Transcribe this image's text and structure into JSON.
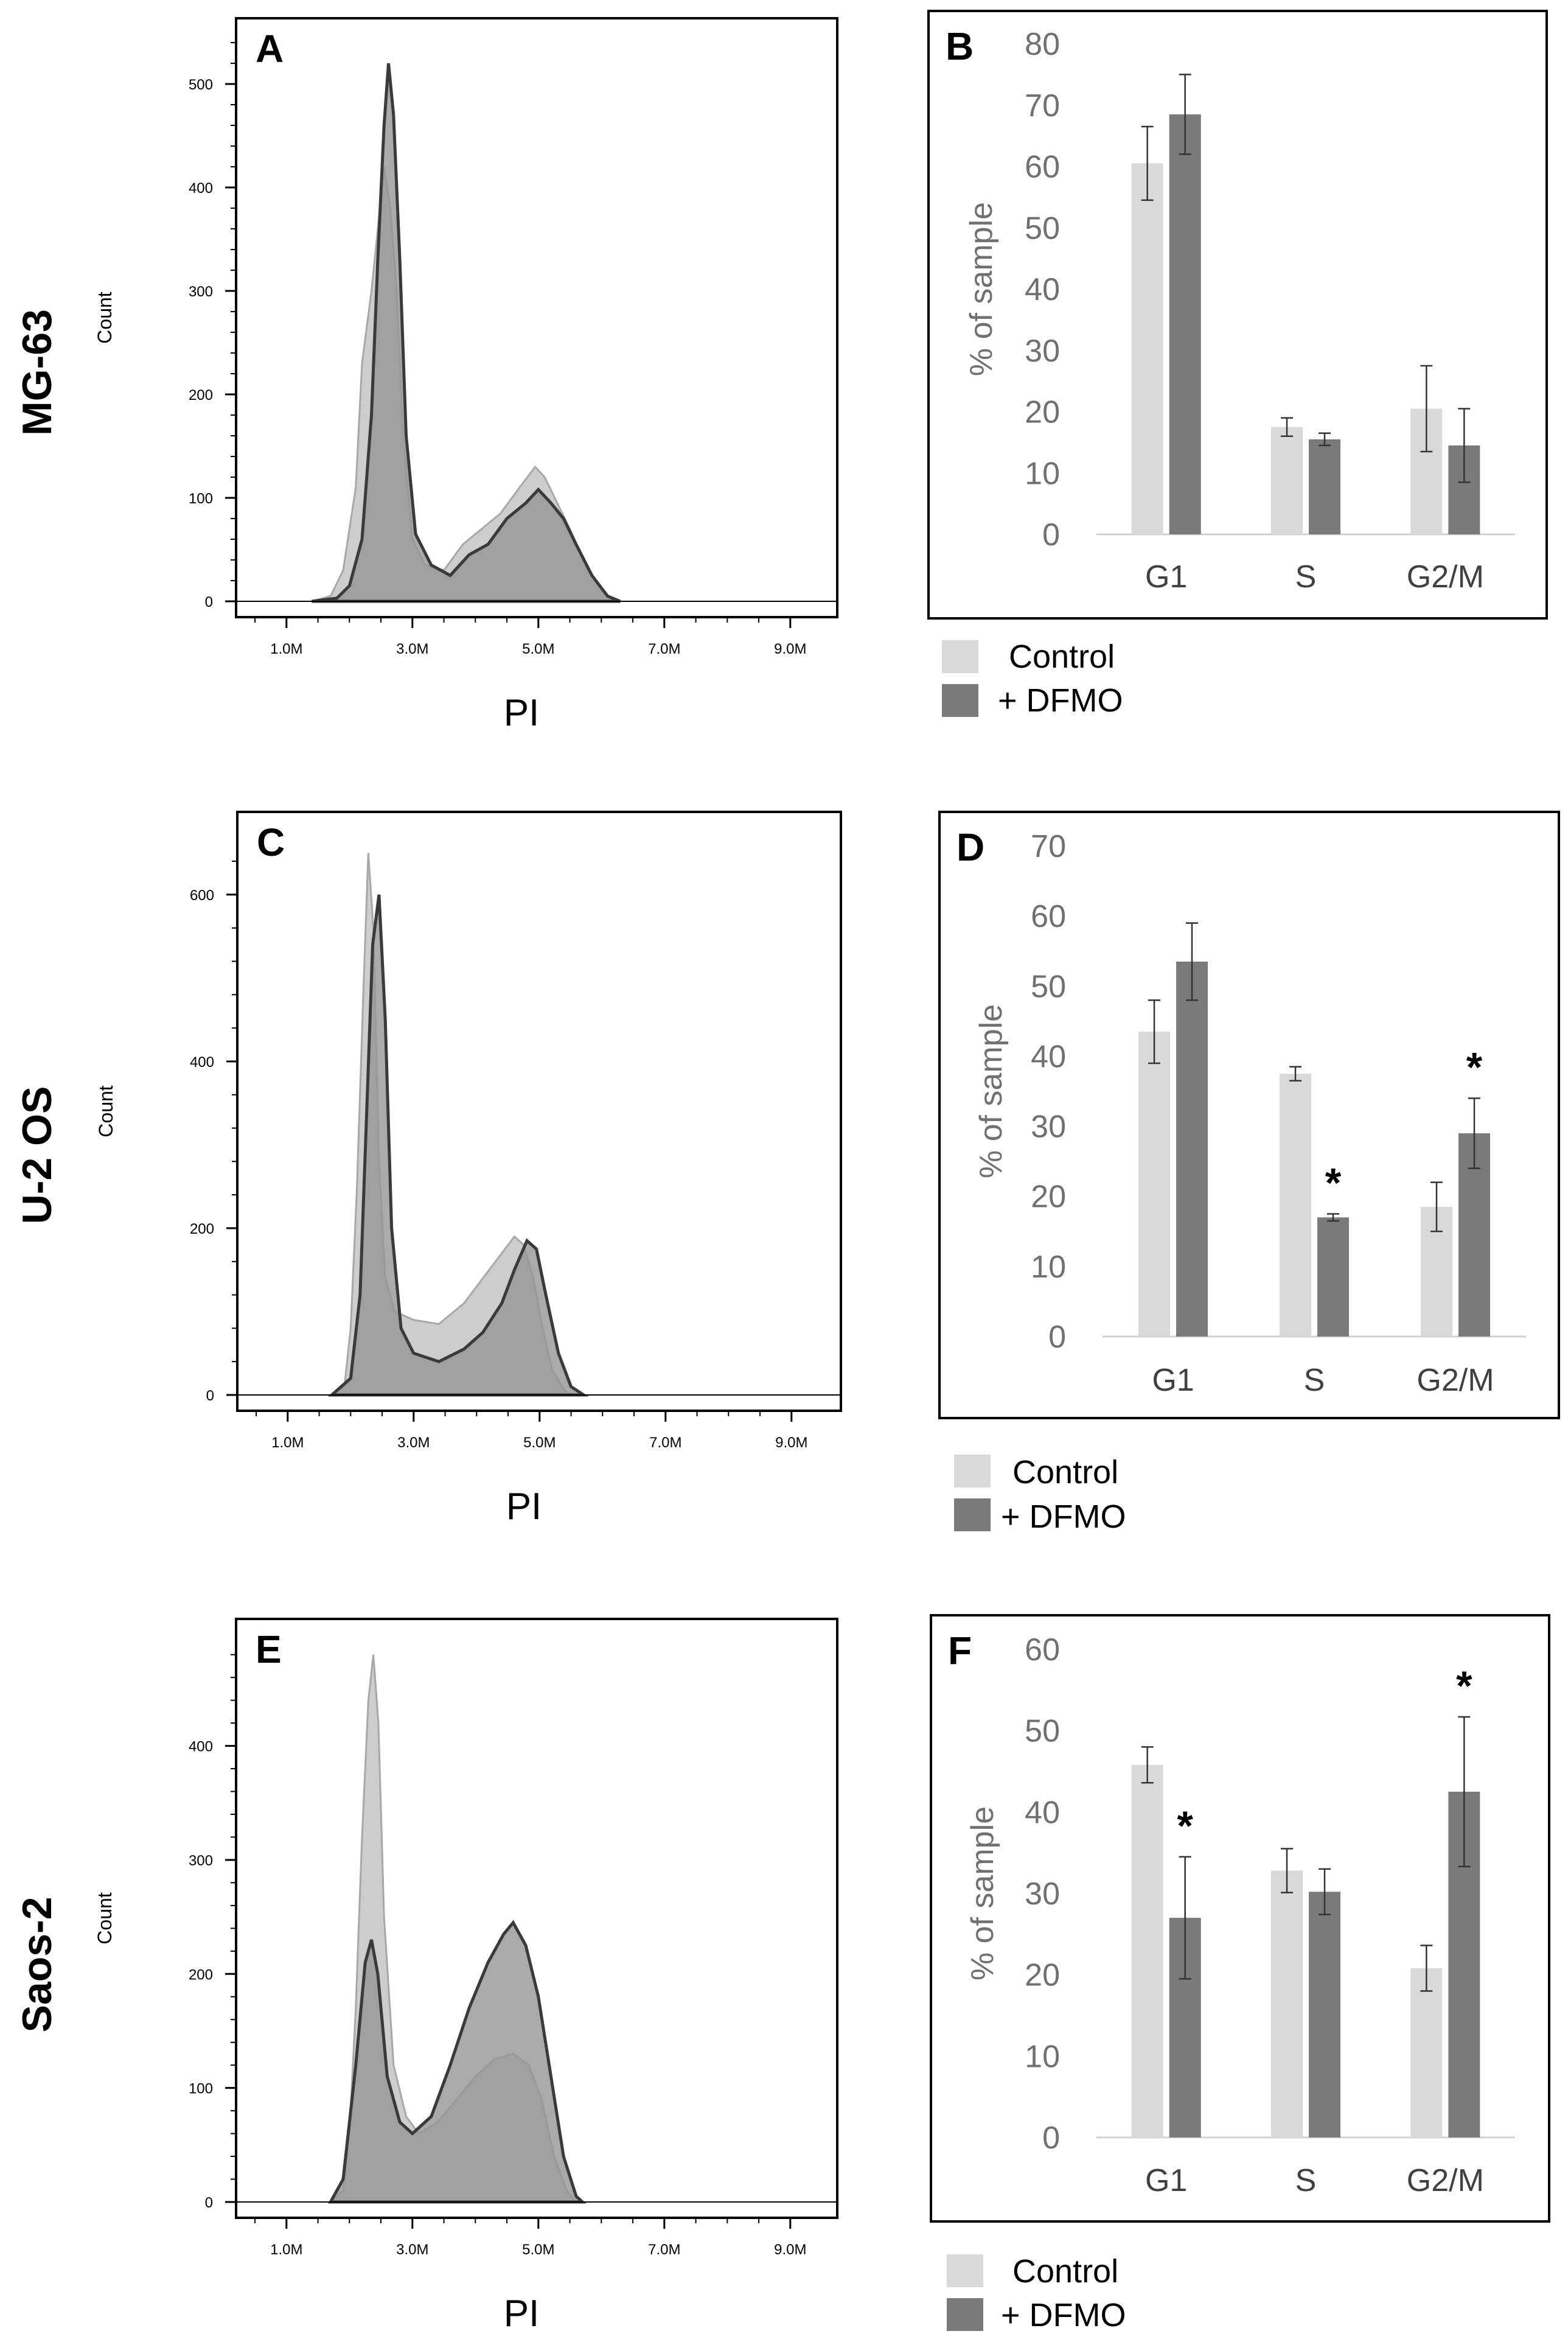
{
  "rows": [
    {
      "cell_line": "MG-63",
      "hist_panel": "A",
      "bar_panel": "B"
    },
    {
      "cell_line": "U-2 OS",
      "hist_panel": "C",
      "bar_panel": "D"
    },
    {
      "cell_line": "Saos-2",
      "hist_panel": "E",
      "bar_panel": "F"
    }
  ],
  "legend": {
    "control": "Control",
    "dfmo": "+ DFMO"
  },
  "colors": {
    "control": "#d9d9d9",
    "dfmo": "#7a7a7a",
    "hist_control": "#c8c8c8",
    "hist_dfmo": "#959595",
    "hist_dfmo_line": "#3a3a3a"
  },
  "chart_data": [
    {
      "type": "area",
      "panel": "A",
      "title": "MG-63",
      "xlabel": "PI",
      "ylabel": "Count",
      "x_ticks": [
        "1.0M",
        "3.0M",
        "5.0M",
        "7.0M",
        "9.0M"
      ],
      "y_ticks": [
        0,
        100,
        200,
        300,
        400,
        500
      ],
      "xlim": [
        0,
        9.5
      ],
      "ylim": [
        0,
        540
      ],
      "series": [
        {
          "name": "Control",
          "points": [
            [
              1.4,
              0
            ],
            [
              1.7,
              5
            ],
            [
              1.9,
              30
            ],
            [
              2.1,
              110
            ],
            [
              2.2,
              230
            ],
            [
              2.35,
              300
            ],
            [
              2.45,
              360
            ],
            [
              2.55,
              420
            ],
            [
              2.65,
              380
            ],
            [
              2.75,
              300
            ],
            [
              2.85,
              160
            ],
            [
              3.0,
              60
            ],
            [
              3.2,
              35
            ],
            [
              3.5,
              30
            ],
            [
              3.8,
              55
            ],
            [
              4.1,
              70
            ],
            [
              4.4,
              85
            ],
            [
              4.7,
              110
            ],
            [
              4.95,
              130
            ],
            [
              5.1,
              120
            ],
            [
              5.3,
              95
            ],
            [
              5.5,
              70
            ],
            [
              5.75,
              35
            ],
            [
              6.0,
              10
            ],
            [
              6.2,
              0
            ]
          ]
        },
        {
          "name": "+ DFMO",
          "points": [
            [
              1.4,
              0
            ],
            [
              1.8,
              3
            ],
            [
              2.0,
              15
            ],
            [
              2.2,
              60
            ],
            [
              2.35,
              180
            ],
            [
              2.45,
              330
            ],
            [
              2.55,
              460
            ],
            [
              2.62,
              520
            ],
            [
              2.7,
              470
            ],
            [
              2.8,
              330
            ],
            [
              2.9,
              160
            ],
            [
              3.05,
              65
            ],
            [
              3.3,
              35
            ],
            [
              3.6,
              25
            ],
            [
              3.9,
              45
            ],
            [
              4.2,
              55
            ],
            [
              4.5,
              80
            ],
            [
              4.8,
              95
            ],
            [
              5.0,
              108
            ],
            [
              5.2,
              95
            ],
            [
              5.4,
              80
            ],
            [
              5.6,
              55
            ],
            [
              5.85,
              25
            ],
            [
              6.1,
              5
            ],
            [
              6.3,
              0
            ]
          ]
        }
      ]
    },
    {
      "type": "bar",
      "panel": "B",
      "title": "MG-63",
      "categories": [
        "G1",
        "S",
        "G2/M"
      ],
      "ylabel": "% of sample",
      "ylim": [
        0,
        80
      ],
      "y_ticks": [
        0,
        10,
        20,
        30,
        40,
        50,
        60,
        70,
        80
      ],
      "series": [
        {
          "name": "Control",
          "values": [
            60.5,
            17.5,
            20.5
          ],
          "errors": [
            6,
            1.5,
            7
          ],
          "stars": [
            false,
            false,
            false
          ]
        },
        {
          "name": "+ DFMO",
          "values": [
            68.5,
            15.5,
            14.5
          ],
          "errors": [
            6.5,
            1.0,
            6.0
          ],
          "stars": [
            false,
            false,
            false
          ]
        }
      ]
    },
    {
      "type": "area",
      "panel": "C",
      "title": "U-2 OS",
      "xlabel": "PI",
      "ylabel": "Count",
      "x_ticks": [
        "1.0M",
        "3.0M",
        "5.0M",
        "7.0M",
        "9.0M"
      ],
      "y_ticks": [
        0,
        200,
        400,
        600
      ],
      "xlim": [
        0,
        9.5
      ],
      "ylim": [
        0,
        670
      ],
      "series": [
        {
          "name": "Control",
          "points": [
            [
              1.7,
              0
            ],
            [
              1.9,
              10
            ],
            [
              2.0,
              80
            ],
            [
              2.1,
              250
            ],
            [
              2.2,
              480
            ],
            [
              2.28,
              650
            ],
            [
              2.36,
              560
            ],
            [
              2.45,
              280
            ],
            [
              2.55,
              140
            ],
            [
              2.7,
              100
            ],
            [
              3.0,
              90
            ],
            [
              3.4,
              85
            ],
            [
              3.8,
              110
            ],
            [
              4.1,
              140
            ],
            [
              4.4,
              170
            ],
            [
              4.6,
              190
            ],
            [
              4.75,
              180
            ],
            [
              4.9,
              140
            ],
            [
              5.05,
              80
            ],
            [
              5.2,
              30
            ],
            [
              5.4,
              5
            ],
            [
              5.5,
              0
            ]
          ]
        },
        {
          "name": "+ DFMO",
          "points": [
            [
              1.7,
              0
            ],
            [
              2.0,
              20
            ],
            [
              2.15,
              120
            ],
            [
              2.25,
              330
            ],
            [
              2.35,
              540
            ],
            [
              2.45,
              600
            ],
            [
              2.55,
              450
            ],
            [
              2.65,
              200
            ],
            [
              2.8,
              80
            ],
            [
              3.0,
              50
            ],
            [
              3.4,
              40
            ],
            [
              3.8,
              55
            ],
            [
              4.1,
              75
            ],
            [
              4.4,
              110
            ],
            [
              4.6,
              150
            ],
            [
              4.8,
              185
            ],
            [
              4.95,
              175
            ],
            [
              5.1,
              120
            ],
            [
              5.3,
              50
            ],
            [
              5.5,
              10
            ],
            [
              5.7,
              0
            ]
          ]
        }
      ]
    },
    {
      "type": "bar",
      "panel": "D",
      "title": "U-2 OS",
      "categories": [
        "G1",
        "S",
        "G2/M"
      ],
      "ylabel": "% of sample",
      "ylim": [
        0,
        70
      ],
      "y_ticks": [
        0,
        10,
        20,
        30,
        40,
        50,
        60,
        70
      ],
      "series": [
        {
          "name": "Control",
          "values": [
            43.5,
            37.5,
            18.5
          ],
          "errors": [
            4.5,
            1.0,
            3.5
          ],
          "stars": [
            false,
            false,
            false
          ]
        },
        {
          "name": "+ DFMO",
          "values": [
            53.5,
            17.0,
            29.0
          ],
          "errors": [
            5.5,
            0.5,
            5.0
          ],
          "stars": [
            false,
            true,
            true
          ]
        }
      ]
    },
    {
      "type": "area",
      "panel": "E",
      "title": "Saos-2",
      "xlabel": "PI",
      "ylabel": "Count",
      "x_ticks": [
        "1.0M",
        "3.0M",
        "5.0M",
        "7.0M",
        "9.0M"
      ],
      "y_ticks": [
        0,
        100,
        200,
        300,
        400
      ],
      "xlim": [
        0,
        9.5
      ],
      "ylim": [
        0,
        490
      ],
      "series": [
        {
          "name": "Control",
          "points": [
            [
              1.7,
              0
            ],
            [
              1.9,
              10
            ],
            [
              2.0,
              60
            ],
            [
              2.1,
              170
            ],
            [
              2.2,
              320
            ],
            [
              2.3,
              440
            ],
            [
              2.38,
              480
            ],
            [
              2.46,
              420
            ],
            [
              2.55,
              250
            ],
            [
              2.7,
              120
            ],
            [
              2.9,
              75
            ],
            [
              3.1,
              60
            ],
            [
              3.4,
              70
            ],
            [
              3.7,
              90
            ],
            [
              4.0,
              110
            ],
            [
              4.3,
              125
            ],
            [
              4.6,
              130
            ],
            [
              4.85,
              120
            ],
            [
              5.05,
              90
            ],
            [
              5.25,
              40
            ],
            [
              5.45,
              10
            ],
            [
              5.6,
              0
            ]
          ]
        },
        {
          "name": "+ DFMO",
          "points": [
            [
              1.7,
              0
            ],
            [
              1.9,
              20
            ],
            [
              2.1,
              120
            ],
            [
              2.25,
              210
            ],
            [
              2.35,
              230
            ],
            [
              2.45,
              200
            ],
            [
              2.6,
              110
            ],
            [
              2.8,
              70
            ],
            [
              3.0,
              60
            ],
            [
              3.3,
              75
            ],
            [
              3.6,
              120
            ],
            [
              3.9,
              170
            ],
            [
              4.2,
              210
            ],
            [
              4.45,
              235
            ],
            [
              4.6,
              245
            ],
            [
              4.8,
              225
            ],
            [
              5.0,
              180
            ],
            [
              5.2,
              110
            ],
            [
              5.4,
              40
            ],
            [
              5.6,
              5
            ],
            [
              5.7,
              0
            ]
          ]
        }
      ]
    },
    {
      "type": "bar",
      "panel": "F",
      "title": "Saos-2",
      "categories": [
        "G1",
        "S",
        "G2/M"
      ],
      "ylabel": "% of sample",
      "ylim": [
        0,
        60
      ],
      "y_ticks": [
        0,
        10,
        20,
        30,
        40,
        50,
        60
      ],
      "series": [
        {
          "name": "Control",
          "values": [
            45.8,
            32.8,
            20.8
          ],
          "errors": [
            2.2,
            2.7,
            2.8
          ],
          "stars": [
            false,
            false,
            false
          ]
        },
        {
          "name": "+ DFMO",
          "values": [
            27.0,
            30.2,
            42.5
          ],
          "errors": [
            7.5,
            2.8,
            9.2
          ],
          "stars": [
            true,
            false,
            true
          ]
        }
      ]
    }
  ]
}
